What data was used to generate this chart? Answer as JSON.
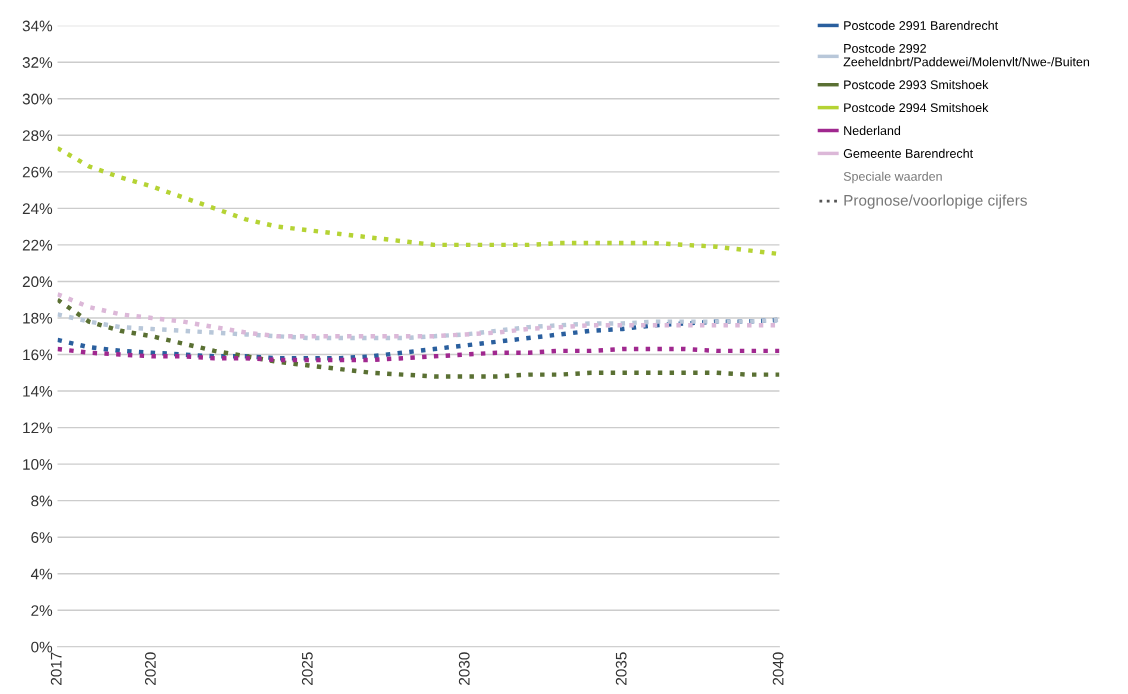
{
  "chart_data": {
    "type": "line",
    "x": [
      2017,
      2018,
      2019,
      2020,
      2021,
      2022,
      2023,
      2024,
      2025,
      2026,
      2027,
      2028,
      2029,
      2030,
      2031,
      2032,
      2033,
      2034,
      2035,
      2036,
      2037,
      2038,
      2039,
      2040
    ],
    "series": [
      {
        "name": "Postcode 2991 Barendrecht",
        "color": "#2a5f9e",
        "values": [
          16.8,
          16.4,
          16.2,
          16.1,
          16.0,
          15.9,
          15.9,
          15.8,
          15.8,
          15.8,
          15.9,
          16.1,
          16.3,
          16.5,
          16.7,
          16.9,
          17.1,
          17.3,
          17.4,
          17.6,
          17.7,
          17.8,
          17.8,
          17.9
        ]
      },
      {
        "name": "Postcode 2992\nZeeheldnbrt/Paddewei/Molenvlt/Nwe-/Buiten",
        "color": "#b8c7d9",
        "values": [
          18.2,
          17.8,
          17.5,
          17.4,
          17.3,
          17.2,
          17.1,
          17.0,
          16.9,
          16.9,
          16.9,
          16.9,
          17.0,
          17.1,
          17.3,
          17.5,
          17.6,
          17.7,
          17.7,
          17.8,
          17.8,
          17.8,
          17.8,
          17.9
        ]
      },
      {
        "name": "Postcode 2993 Smitshoek",
        "color": "#5a7033",
        "values": [
          19.0,
          17.8,
          17.3,
          17.0,
          16.6,
          16.2,
          15.9,
          15.6,
          15.4,
          15.2,
          15.0,
          14.9,
          14.8,
          14.8,
          14.8,
          14.9,
          14.9,
          15.0,
          15.0,
          15.0,
          15.0,
          15.0,
          14.9,
          14.9
        ]
      },
      {
        "name": "Postcode 2994 Smitshoek",
        "color": "#b5d334",
        "values": [
          27.3,
          26.3,
          25.7,
          25.2,
          24.6,
          24.0,
          23.4,
          23.0,
          22.8,
          22.6,
          22.4,
          22.2,
          22.0,
          22.0,
          22.0,
          22.0,
          22.1,
          22.1,
          22.1,
          22.1,
          22.0,
          21.9,
          21.7,
          21.5
        ]
      },
      {
        "name": "Nederland",
        "color": "#a0288f",
        "values": [
          16.3,
          16.1,
          16.0,
          15.9,
          15.9,
          15.8,
          15.8,
          15.7,
          15.7,
          15.7,
          15.7,
          15.8,
          15.9,
          16.0,
          16.1,
          16.1,
          16.2,
          16.2,
          16.3,
          16.3,
          16.3,
          16.2,
          16.2,
          16.2
        ]
      },
      {
        "name": "Gemeente Barendrecht",
        "color": "#dcb8d8",
        "values": [
          19.3,
          18.6,
          18.2,
          18.0,
          17.8,
          17.5,
          17.2,
          17.0,
          17.0,
          17.0,
          17.0,
          17.0,
          17.0,
          17.1,
          17.2,
          17.4,
          17.5,
          17.6,
          17.6,
          17.6,
          17.6,
          17.6,
          17.6,
          17.6
        ]
      }
    ],
    "xlim": [
      2017,
      2040
    ],
    "xticks": [
      2017,
      2020,
      2025,
      2030,
      2035,
      2040
    ],
    "ylim": [
      0,
      34
    ],
    "yticks": [
      {
        "value": 0,
        "label": "0%"
      },
      {
        "value": 2,
        "label": "2%"
      },
      {
        "value": 4,
        "label": "4%"
      },
      {
        "value": 6,
        "label": "6%"
      },
      {
        "value": 8,
        "label": "8%"
      },
      {
        "value": 10,
        "label": "10%"
      },
      {
        "value": 12,
        "label": "12%"
      },
      {
        "value": 14,
        "label": "14%"
      },
      {
        "value": 16,
        "label": "16%"
      },
      {
        "value": 18,
        "label": "18%"
      },
      {
        "value": 20,
        "label": "20%"
      },
      {
        "value": 22,
        "label": "22%"
      },
      {
        "value": 24,
        "label": "24%"
      },
      {
        "value": 26,
        "label": "26%"
      },
      {
        "value": 28,
        "label": "28%"
      },
      {
        "value": 30,
        "label": "30%"
      },
      {
        "value": 32,
        "label": "32%"
      },
      {
        "value": 34,
        "label": "34%"
      }
    ],
    "grid": "y",
    "legend": "right",
    "line_style": "dotted",
    "marker": "none",
    "annotations": [
      "Speciale waarden",
      "Prognose/voorlopige cijfers"
    ]
  }
}
